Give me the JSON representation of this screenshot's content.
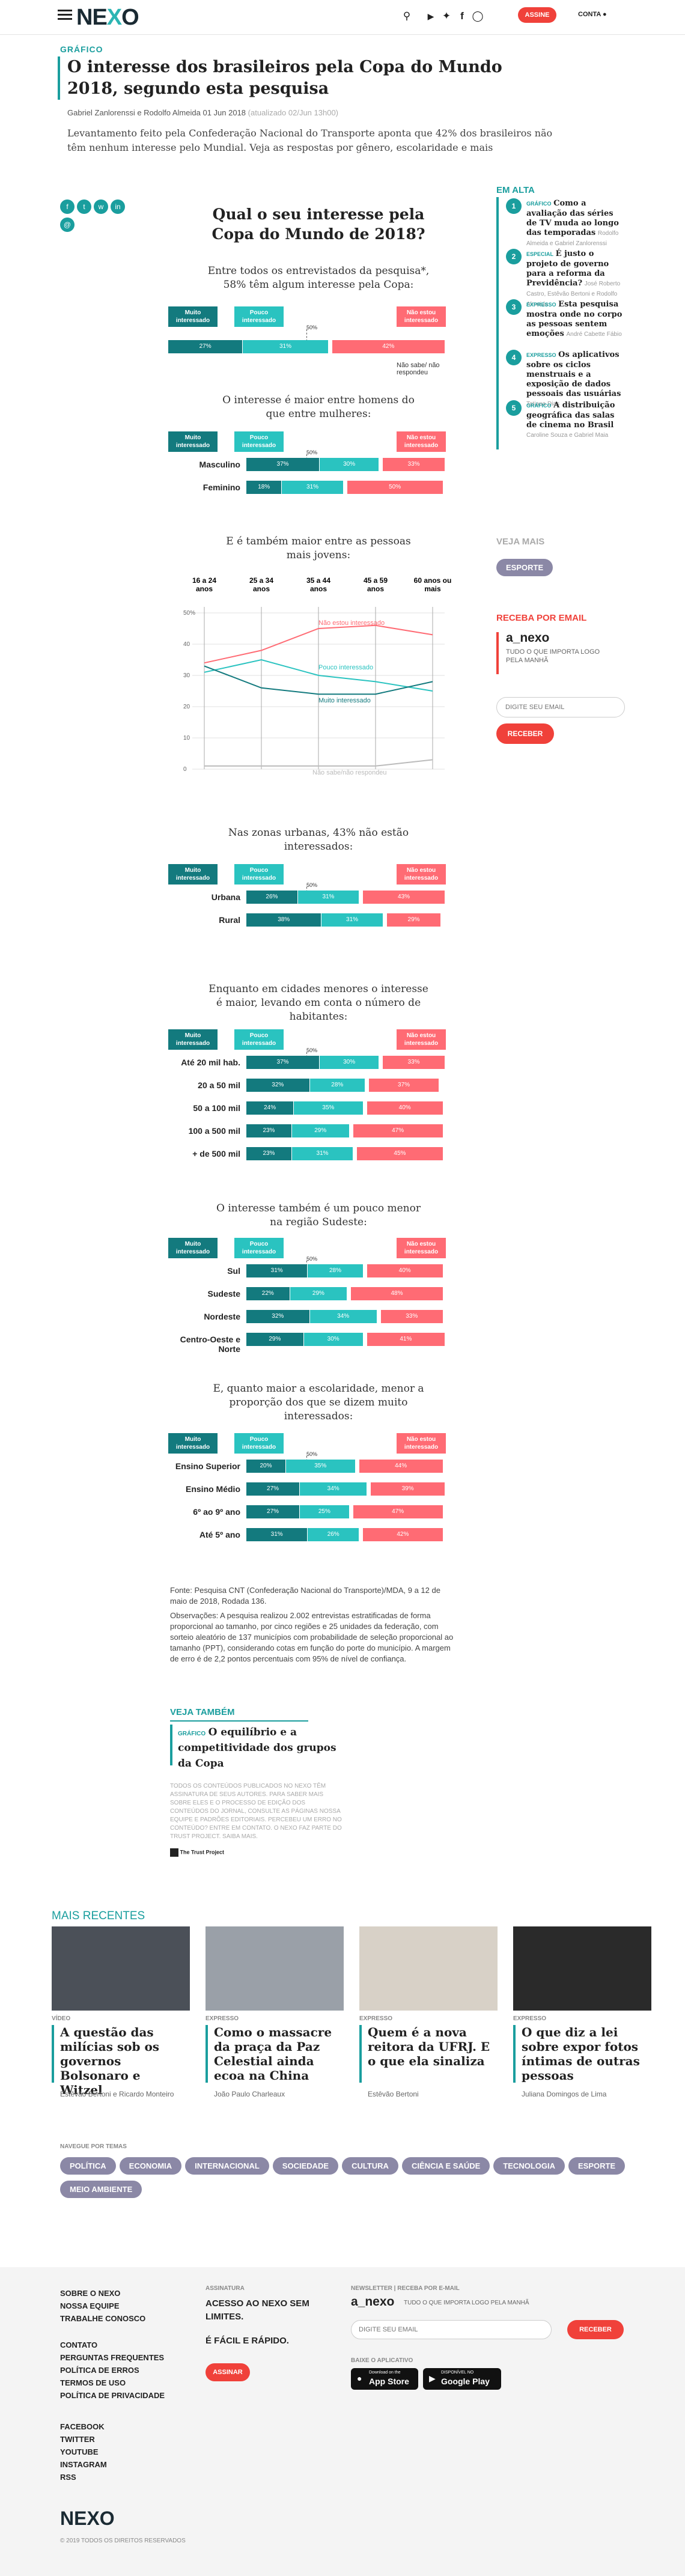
{
  "header": {
    "logo_prefix": "NE",
    "logo_x": "X",
    "logo_suffix": "O",
    "subscribe": "ASSINE",
    "account": "CONTA"
  },
  "article": {
    "kicker": "GRÁFICO",
    "title": "O interesse dos brasileiros pela Copa do Mundo 2018, segundo esta pesquisa",
    "byline": "Gabriel Zanlorenssi e Rodolfo Almeida",
    "date": "01 Jun 2018",
    "updated": "(atualizado 02/Jun 13h00)",
    "lead": "Levantamento feito pela Confederação Nacional do Transporte aponta que 42% dos brasileiros não têm nenhum interesse pelo Mundial. Veja as respostas por gênero, escolaridade e mais"
  },
  "chart_data": [
    {
      "type": "bar",
      "title": "Qual o seu interesse pela Copa do Mundo de 2018?",
      "subtitle": "Entre todos os entrevistados da pesquisa*, 58% têm algum interesse pela Copa:",
      "series_names": [
        "Muito interessado",
        "Pouco interessado",
        "Não estou interessado"
      ],
      "mid_label": "50%",
      "other_label": "Não sabe/ não respondeu",
      "categories": [
        ""
      ],
      "series": [
        {
          "name": "Muito interessado",
          "values": [
            27
          ]
        },
        {
          "name": "Pouco interessado",
          "values": [
            31
          ]
        },
        {
          "name": "Não estou interessado",
          "values": [
            42
          ]
        }
      ]
    },
    {
      "type": "bar",
      "subtitle": "O interesse é maior entre homens do que entre mulheres:",
      "categories": [
        "Masculino",
        "Feminino"
      ],
      "series": [
        {
          "name": "Muito interessado",
          "values": [
            37,
            18
          ]
        },
        {
          "name": "Pouco interessado",
          "values": [
            30,
            31
          ]
        },
        {
          "name": "Não estou interessado",
          "values": [
            33,
            50
          ]
        }
      ]
    },
    {
      "type": "line",
      "subtitle": "E é também maior entre as pessoas mais jovens:",
      "x": [
        "16 a 24 anos",
        "25 a 34 anos",
        "35 a 44 anos",
        "45 a 59 anos",
        "60 anos ou mais"
      ],
      "yticks": [
        "0",
        "10",
        "20",
        "30",
        "40",
        "50%"
      ],
      "ylim": [
        0,
        50
      ],
      "series": [
        {
          "name": "Não estou interessado",
          "values": [
            34,
            38,
            45,
            46,
            43
          ]
        },
        {
          "name": "Pouco interessado",
          "values": [
            31,
            35,
            30,
            28,
            25
          ]
        },
        {
          "name": "Muito interessado",
          "values": [
            33,
            26,
            24,
            24,
            28
          ]
        },
        {
          "name": "Não sabe/não respondeu",
          "values": [
            1,
            1,
            1,
            1,
            3
          ]
        }
      ]
    },
    {
      "type": "bar",
      "subtitle": "Nas zonas urbanas, 43% não estão interessados:",
      "categories": [
        "Urbana",
        "Rural"
      ],
      "series": [
        {
          "name": "Muito interessado",
          "values": [
            26,
            38
          ]
        },
        {
          "name": "Pouco interessado",
          "values": [
            31,
            31
          ]
        },
        {
          "name": "Não estou interessado",
          "values": [
            43,
            29
          ]
        }
      ]
    },
    {
      "type": "bar",
      "subtitle": "Enquanto em cidades menores o interesse é maior, levando em conta o número de habitantes:",
      "categories": [
        "Até 20 mil hab.",
        "20 a 50 mil",
        "50 a 100 mil",
        "100 a 500 mil",
        "+ de 500 mil"
      ],
      "series": [
        {
          "name": "Muito interessado",
          "values": [
            37,
            32,
            24,
            23,
            23
          ]
        },
        {
          "name": "Pouco interessado",
          "values": [
            30,
            28,
            35,
            29,
            31
          ]
        },
        {
          "name": "Não estou interessado",
          "values": [
            33,
            37,
            40,
            47,
            45
          ]
        }
      ]
    },
    {
      "type": "bar",
      "subtitle": "O interesse também é um pouco menor na região Sudeste:",
      "categories": [
        "Sul",
        "Sudeste",
        "Nordeste",
        "Centro-Oeste e Norte"
      ],
      "series": [
        {
          "name": "Muito interessado",
          "values": [
            31,
            22,
            32,
            29
          ]
        },
        {
          "name": "Pouco interessado",
          "values": [
            28,
            29,
            34,
            30
          ]
        },
        {
          "name": "Não estou interessado",
          "values": [
            40,
            48,
            33,
            41
          ]
        }
      ]
    },
    {
      "type": "bar",
      "subtitle": "E, quanto maior a escolaridade, menor a proporção dos que se dizem muito interessados:",
      "categories": [
        "Ensino Superior",
        "Ensino Médio",
        "6º ao 9º ano",
        "Até 5º ano"
      ],
      "series": [
        {
          "name": "Muito interessado",
          "values": [
            20,
            27,
            27,
            31
          ]
        },
        {
          "name": "Pouco interessado",
          "values": [
            35,
            34,
            25,
            26
          ]
        },
        {
          "name": "Não estou interessado",
          "values": [
            44,
            39,
            47,
            42
          ]
        }
      ]
    }
  ],
  "notes": {
    "source": "Fonte: Pesquisa CNT (Confederação Nacional do Transporte)/MDA, 9 a 12 de maio de 2018, Rodada 136.",
    "obs": "Observações: A pesquisa realizou 2.002 entrevistas estratificadas de forma proporcional ao tamanho, por cinco regiões e 25 unidades da federação, com sorteio aleatório de 137 municípios com probabilidade de seleção proporcional ao tamanho (PPT), considerando cotas em função do porte do município. A margem de erro é de 2,2 pontos percentuais com 95% de nível de confiança."
  },
  "see_also": {
    "heading": "VEJA TAMBÉM",
    "kicker": "GRÁFICO",
    "title": "O equilíbrio e a competitividade dos grupos da Copa"
  },
  "rights": "TODOS OS CONTEÚDOS PUBLICADOS NO NEXO TÊM ASSINATURA DE SEUS AUTORES. PARA SABER MAIS SOBRE ELES E O PROCESSO DE EDIÇÃO DOS CONTEÚDOS DO JORNAL, CONSULTE AS PÁGINAS NOSSA EQUIPE E PADRÕES EDITORIAIS. PERCEBEU UM ERRO NO CONTEÚDO? ENTRE EM CONTATO. O NEXO FAZ PARTE DO TRUST PROJECT. SAIBA MAIS.",
  "trust": "The Trust Project",
  "sidebar": {
    "heading": "EM ALTA",
    "items": [
      {
        "num": "1",
        "kicker": "GRÁFICO",
        "title": "Como a avaliação das séries de TV muda ao longo das temporadas",
        "authors": "Rodolfo Almeida e Gabriel Zanlorenssi"
      },
      {
        "num": "2",
        "kicker": "ESPECIAL",
        "title": "É justo o projeto de governo para a reforma da Previdência?",
        "authors": "José Roberto Castro, Estêvão Bertoni e Rodolfo Almeida"
      },
      {
        "num": "3",
        "kicker": "EXPRESSO",
        "title": "Esta pesquisa mostra onde no corpo as pessoas sentem emoções",
        "authors": "André Cabette Fábio"
      },
      {
        "num": "4",
        "kicker": "EXPRESSO",
        "title": "Os aplicativos sobre os ciclos menstruais e a exposição de dados pessoais das usuárias",
        "authors": "Tatiana Dias"
      },
      {
        "num": "5",
        "kicker": "GRÁFICO",
        "title": "A distribuição geográfica das salas de cinema no Brasil",
        "authors": "Caroline Souza e Gabriel Maia"
      }
    ],
    "see_more": "VEJA MAIS",
    "tag": "ESPORTE",
    "newsletter_heading": "RECEBA POR EMAIL",
    "newsletter_name": "a_nexo",
    "newsletter_desc": "TUDO O QUE IMPORTA LOGO PELA MANHÃ",
    "email_placeholder": "DIGITE SEU EMAIL",
    "receive": "RECEBER"
  },
  "recent": {
    "heading": "MAIS RECENTES",
    "cards": [
      {
        "kicker": "VÍDEO",
        "title": "A questão das milícias sob os governos Bolsonaro e Witzel",
        "authors": "Estêvão Bertoni e Ricardo Monteiro"
      },
      {
        "kicker": "EXPRESSO",
        "title": "Como o massacre da praça da Paz Celestial ainda ecoa na China",
        "authors": "João Paulo Charleaux"
      },
      {
        "kicker": "EXPRESSO",
        "title": "Quem é a nova reitora da UFRJ. E o que ela sinaliza",
        "authors": "Estêvão Bertoni"
      },
      {
        "kicker": "EXPRESSO",
        "title": "O que diz a lei sobre expor fotos íntimas de outras pessoas",
        "authors": "Juliana Domingos de Lima"
      }
    ]
  },
  "topics": {
    "heading": "NAVEGUE POR TEMAS",
    "items": [
      "POLÍTICA",
      "ECONOMIA",
      "INTERNACIONAL",
      "SOCIEDADE",
      "CULTURA",
      "CIÊNCIA E SAÚDE",
      "TECNOLOGIA",
      "ESPORTE",
      "MEIO AMBIENTE"
    ]
  },
  "footer": {
    "links1": [
      "SOBRE O NEXO",
      "NOSSA EQUIPE",
      "TRABALHE CONOSCO"
    ],
    "links2": [
      "CONTATO",
      "PERGUNTAS FREQUENTES",
      "POLÍTICA DE ERROS",
      "TERMOS DE USO",
      "POLÍTICA DE PRIVACIDADE"
    ],
    "social": [
      "FACEBOOK",
      "TWITTER",
      "YOUTUBE",
      "INSTAGRAM",
      "RSS"
    ],
    "sub_heading": "ASSINATURA",
    "sub_title": "ACESSO AO NEXO SEM LIMITES.",
    "sub_title2": "É FÁCIL E RÁPIDO.",
    "sub_button": "ASSINAR",
    "nl_heading": "NEWSLETTER | RECEBA POR E-MAIL",
    "nl_name": "a_nexo",
    "nl_desc": "TUDO O QUE IMPORTA LOGO PELA MANHÃ",
    "nl_placeholder": "DIGITE SEU EMAIL",
    "nl_button": "RECEBER",
    "app_heading": "BAIXE O APLICATIVO",
    "appstore": "App Store",
    "appstore_small": "Download on the",
    "googleplay": "Google Play",
    "googleplay_small": "DISPONÍVEL NO",
    "logo": "NEXO",
    "copyright": "© 2019 TODOS OS DIREITOS RESERVADOS"
  }
}
